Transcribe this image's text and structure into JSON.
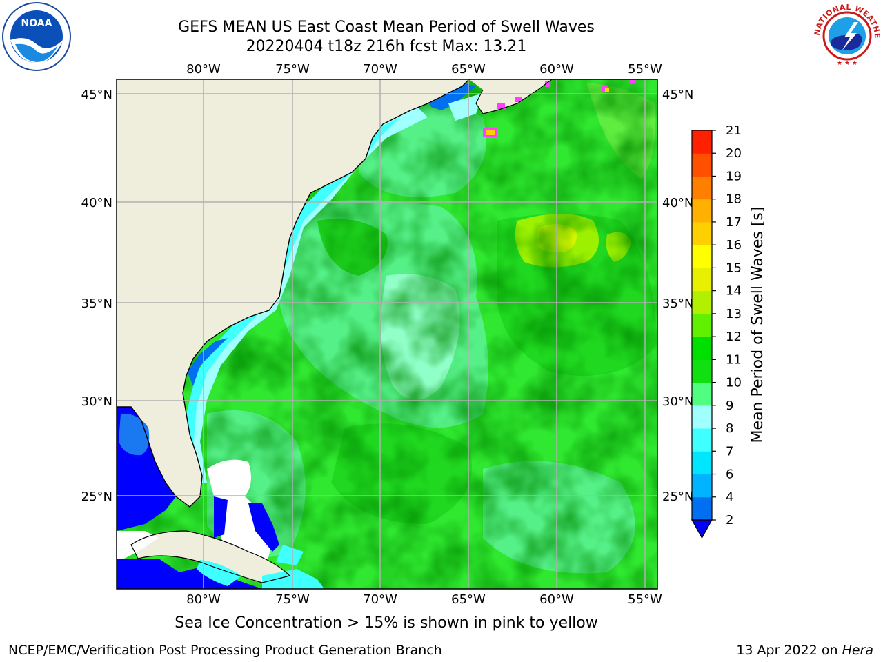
{
  "header": {
    "title_line1": "GEFS MEAN US East Coast Mean Period of Swell Waves",
    "title_line2": "20220404 t18z 216h fcst   Max: 13.21"
  },
  "axes": {
    "lon_labels": [
      "80°W",
      "75°W",
      "70°W",
      "65°W",
      "60°W",
      "55°W"
    ],
    "lat_labels": [
      "45°N",
      "40°N",
      "35°N",
      "30°N",
      "25°N"
    ],
    "grid": true
  },
  "colorbar": {
    "label": "Mean Period of Swell Waves [s]",
    "ticks": [
      "2",
      "4",
      "6",
      "7",
      "8",
      "9",
      "10",
      "11",
      "12",
      "13",
      "14",
      "15",
      "16",
      "17",
      "18",
      "19",
      "20",
      "21"
    ],
    "colors": [
      "#0070f0",
      "#00b4ff",
      "#00e6ff",
      "#40ffff",
      "#a0ffff",
      "#50ff80",
      "#10e010",
      "#00e000",
      "#60f000",
      "#b0f000",
      "#e6f000",
      "#ffff00",
      "#ffd000",
      "#ffb000",
      "#ff8000",
      "#ff5000",
      "#ff2000",
      "#ff0000"
    ],
    "under_color": "#0000ff"
  },
  "footer": {
    "ice_note": "Sea Ice Concentration > 15% is shown in pink to yellow",
    "credit": "NCEP/EMC/Verification Post Processing Product Generation Branch",
    "date": "13 Apr 2022 on ",
    "machine": "Hera"
  },
  "logos": {
    "noaa": "NOAA",
    "nws": "NATIONAL WEATHER SERVICE"
  }
}
